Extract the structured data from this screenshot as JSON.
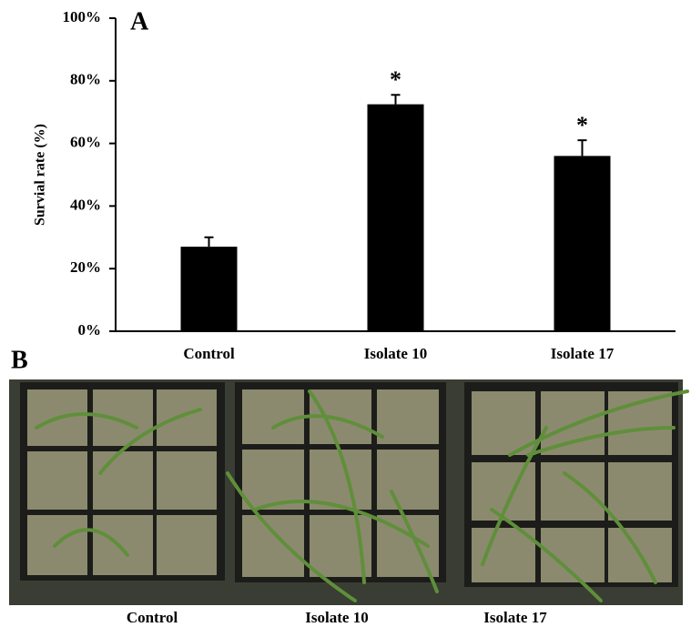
{
  "chart_data": {
    "type": "bar",
    "panel_label": "A",
    "y_label": "Survial rate (%)",
    "categories": [
      "Control",
      "Isolate 10",
      "Isolate 17"
    ],
    "values": [
      27,
      72.5,
      56
    ],
    "errors": [
      3,
      3,
      5
    ],
    "significance": [
      null,
      "*",
      "*"
    ],
    "color": "#000000",
    "ylim": [
      0,
      100
    ],
    "yticks": [
      {
        "value": 0,
        "label": "0%"
      },
      {
        "value": 20,
        "label": "20%"
      },
      {
        "value": 40,
        "label": "40%"
      },
      {
        "value": 60,
        "label": "60%"
      },
      {
        "value": 80,
        "label": "80%"
      },
      {
        "value": 100,
        "label": "100%"
      }
    ]
  },
  "panel_b": {
    "label": "B",
    "captions": [
      "Control",
      "Isolate 10",
      "Isolate 17"
    ]
  }
}
